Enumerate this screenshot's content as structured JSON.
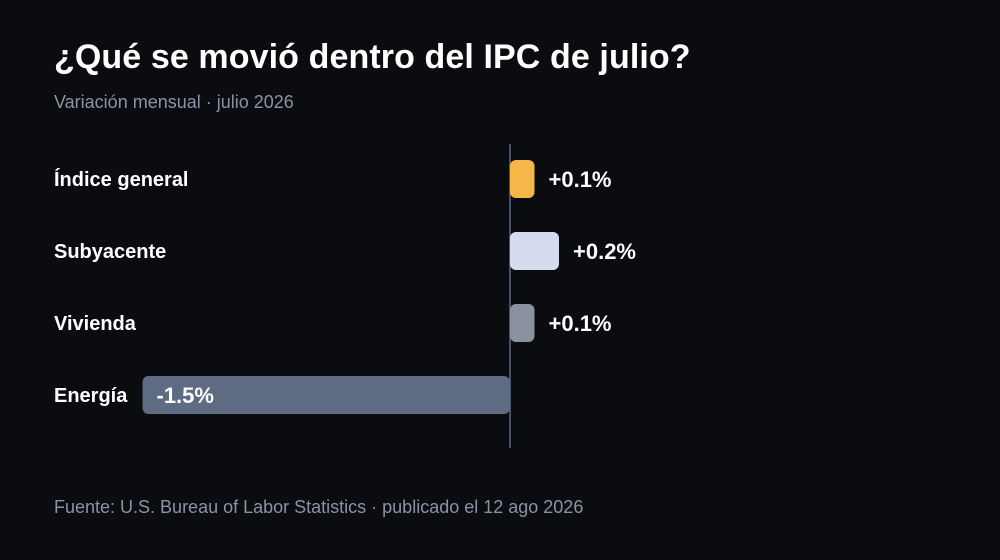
{
  "header": {
    "title": "¿Qué se movió dentro del IPC de julio?",
    "subtitle": "Variación mensual · julio 2026"
  },
  "footer": {
    "source": "Fuente: U.S. Bureau of Labor Statistics · publicado el 12 ago 2026"
  },
  "chart_data": {
    "type": "bar",
    "orientation": "horizontal",
    "title": "¿Qué se movió dentro del IPC de julio?",
    "subtitle": "Variación mensual · julio 2026",
    "xlabel": "",
    "ylabel": "",
    "categories": [
      "Índice general",
      "Subyacente",
      "Vivienda",
      "Energía"
    ],
    "values": [
      0.1,
      0.2,
      0.1,
      -1.5
    ],
    "labels": [
      "+0.1%",
      "+0.2%",
      "+0.1%",
      "-1.5%"
    ],
    "colors": [
      "#f5b74a",
      "#d6dcf0",
      "#8a92a2",
      "#5f6b82"
    ],
    "axis_color": "#5f6b82",
    "grid": false,
    "legend": "none"
  }
}
